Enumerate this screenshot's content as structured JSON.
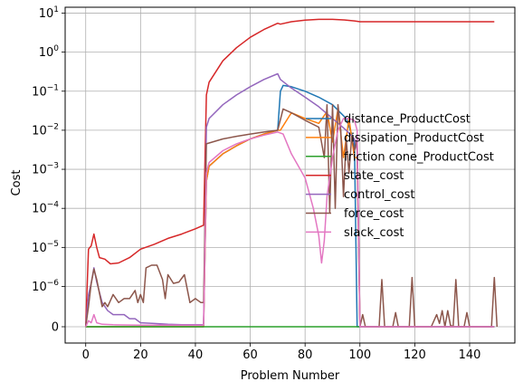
{
  "chart_data": {
    "type": "line",
    "title": "",
    "xlabel": "Problem Number",
    "ylabel": "Cost",
    "xlim": [
      -7.5,
      156.5
    ],
    "x_ticks": [
      0,
      20,
      40,
      60,
      80,
      100,
      120,
      140
    ],
    "y_scale": "symlog",
    "y_ticks": [
      {
        "value": 0,
        "label": "0"
      },
      {
        "value": 1e-06,
        "label": "10",
        "exp": "−6"
      },
      {
        "value": 1e-05,
        "label": "10",
        "exp": "−5"
      },
      {
        "value": 0.0001,
        "label": "10",
        "exp": "−4"
      },
      {
        "value": 0.001,
        "label": "10",
        "exp": "−3"
      },
      {
        "value": 0.01,
        "label": "10",
        "exp": "−2"
      },
      {
        "value": 0.1,
        "label": "10",
        "exp": "−1"
      },
      {
        "value": 1,
        "label": "10",
        "exp": "0"
      },
      {
        "value": 10,
        "label": "10",
        "exp": "1"
      }
    ],
    "grid": true,
    "legend_position": "right",
    "series": [
      {
        "name": "distance_ProductCost",
        "color": "#1f77b4",
        "points": [
          [
            0,
            0
          ],
          [
            43,
            0
          ],
          [
            44,
            0.0005
          ],
          [
            45,
            0.0012
          ],
          [
            50,
            0.0025
          ],
          [
            55,
            0.004
          ],
          [
            60,
            0.006
          ],
          [
            65,
            0.008
          ],
          [
            70,
            0.01
          ],
          [
            71,
            0.1
          ],
          [
            72,
            0.14
          ],
          [
            75,
            0.13
          ],
          [
            80,
            0.1
          ],
          [
            85,
            0.07
          ],
          [
            90,
            0.045
          ],
          [
            95,
            0.02
          ],
          [
            98,
            0.005
          ],
          [
            99,
            0
          ],
          [
            149,
            0
          ]
        ]
      },
      {
        "name": "dissipation_ProductCost",
        "color": "#ff7f0e",
        "points": [
          [
            0,
            0
          ],
          [
            43,
            0
          ],
          [
            44,
            0.0005
          ],
          [
            45,
            0.0012
          ],
          [
            50,
            0.0025
          ],
          [
            55,
            0.004
          ],
          [
            60,
            0.006
          ],
          [
            65,
            0.008
          ],
          [
            70,
            0.01
          ],
          [
            71,
            0.01
          ],
          [
            75,
            0.028
          ],
          [
            80,
            0.02
          ],
          [
            85,
            0.015
          ],
          [
            88,
            0.03
          ],
          [
            90,
            0.005
          ],
          [
            92,
            0.035
          ],
          [
            94,
            0.002
          ],
          [
            96,
            0.02
          ],
          [
            98,
            0.002
          ],
          [
            99,
            0.002
          ],
          [
            100,
            0
          ],
          [
            149,
            0
          ]
        ]
      },
      {
        "name": "friction cone_ProductCost",
        "color": "#2ca02c",
        "points": [
          [
            0,
            0
          ],
          [
            149,
            0
          ]
        ]
      },
      {
        "name": "state_cost",
        "color": "#d62728",
        "points": [
          [
            0,
            0
          ],
          [
            1,
            9e-06
          ],
          [
            2,
            1.1e-05
          ],
          [
            3,
            2.2e-05
          ],
          [
            4,
            1e-05
          ],
          [
            5,
            5.5e-06
          ],
          [
            7,
            5e-06
          ],
          [
            9,
            3.8e-06
          ],
          [
            12,
            4e-06
          ],
          [
            16,
            5.5e-06
          ],
          [
            20,
            9e-06
          ],
          [
            25,
            1.2e-05
          ],
          [
            30,
            1.7e-05
          ],
          [
            35,
            2.2e-05
          ],
          [
            40,
            3e-05
          ],
          [
            43,
            3.7e-05
          ],
          [
            44,
            0.08
          ],
          [
            45,
            0.17
          ],
          [
            50,
            0.6
          ],
          [
            55,
            1.3
          ],
          [
            60,
            2.4
          ],
          [
            65,
            3.8
          ],
          [
            70,
            5.5
          ],
          [
            71,
            5.2
          ],
          [
            75,
            6.0
          ],
          [
            80,
            6.6
          ],
          [
            85,
            6.9
          ],
          [
            90,
            6.9
          ],
          [
            95,
            6.6
          ],
          [
            98,
            6.3
          ],
          [
            100,
            6.0
          ],
          [
            149,
            6.0
          ]
        ]
      },
      {
        "name": "control_cost",
        "color": "#9467bd",
        "points": [
          [
            0,
            0
          ],
          [
            1,
            8e-07
          ],
          [
            2,
            1.2e-06
          ],
          [
            3,
            3e-06
          ],
          [
            4,
            1.3e-06
          ],
          [
            6,
            6e-07
          ],
          [
            8,
            4e-07
          ],
          [
            10,
            3e-07
          ],
          [
            14,
            3e-07
          ],
          [
            16,
            2e-07
          ],
          [
            18,
            2e-07
          ],
          [
            20,
            1e-07
          ],
          [
            25,
            8e-08
          ],
          [
            30,
            6e-08
          ],
          [
            35,
            5e-08
          ],
          [
            43,
            5e-08
          ],
          [
            44,
            0.012
          ],
          [
            45,
            0.02
          ],
          [
            50,
            0.045
          ],
          [
            55,
            0.08
          ],
          [
            60,
            0.13
          ],
          [
            65,
            0.2
          ],
          [
            70,
            0.28
          ],
          [
            71,
            0.2
          ],
          [
            75,
            0.12
          ],
          [
            80,
            0.07
          ],
          [
            85,
            0.04
          ],
          [
            90,
            0.02
          ],
          [
            95,
            0.01
          ],
          [
            98,
            0.006
          ],
          [
            99,
            0.003
          ],
          [
            100,
            0
          ],
          [
            149,
            0
          ]
        ]
      },
      {
        "name": "force_cost",
        "color": "#8c564b",
        "points": [
          [
            0,
            0
          ],
          [
            1,
            5e-07
          ],
          [
            2,
            1.2e-06
          ],
          [
            3,
            2.8e-06
          ],
          [
            4,
            1.5e-06
          ],
          [
            6,
            5e-07
          ],
          [
            7,
            6e-07
          ],
          [
            8,
            5e-07
          ],
          [
            10,
            8e-07
          ],
          [
            12,
            6e-07
          ],
          [
            14,
            7e-07
          ],
          [
            16,
            7e-07
          ],
          [
            18,
            9e-07
          ],
          [
            19,
            6e-07
          ],
          [
            20,
            8e-07
          ],
          [
            21,
            6e-07
          ],
          [
            22,
            3e-06
          ],
          [
            24,
            3.5e-06
          ],
          [
            26,
            3.5e-06
          ],
          [
            28,
            1.5e-06
          ],
          [
            29,
            7e-07
          ],
          [
            30,
            2e-06
          ],
          [
            32,
            1.2e-06
          ],
          [
            34,
            1.3e-06
          ],
          [
            36,
            2e-06
          ],
          [
            38,
            6e-07
          ],
          [
            40,
            7e-07
          ],
          [
            42,
            6e-07
          ],
          [
            43,
            6e-07
          ],
          [
            44,
            0.0045
          ],
          [
            50,
            0.006
          ],
          [
            55,
            0.007
          ],
          [
            60,
            0.008
          ],
          [
            65,
            0.009
          ],
          [
            70,
            0.01
          ],
          [
            72,
            0.035
          ],
          [
            75,
            0.028
          ],
          [
            80,
            0.018
          ],
          [
            85,
            0.012
          ],
          [
            87,
            0.002
          ],
          [
            88,
            0.045
          ],
          [
            89,
            8e-05
          ],
          [
            90,
            0.045
          ],
          [
            91,
            0.0001
          ],
          [
            92,
            0.045
          ],
          [
            93,
            0.01
          ],
          [
            94,
            0.0002
          ],
          [
            95,
            0.006
          ],
          [
            96,
            0.0008
          ],
          [
            97,
            0.007
          ],
          [
            98,
            0.003
          ],
          [
            99,
            0.006
          ],
          [
            100,
            0
          ],
          [
            101,
            3e-07
          ],
          [
            102,
            0
          ],
          [
            107,
            0
          ],
          [
            108,
            1.5e-06
          ],
          [
            109,
            0
          ],
          [
            112,
            0
          ],
          [
            113,
            3.5e-07
          ],
          [
            114,
            0
          ],
          [
            118,
            0
          ],
          [
            119,
            1.7e-06
          ],
          [
            120,
            0
          ],
          [
            126,
            0
          ],
          [
            127,
            1.5e-07
          ],
          [
            128,
            3e-07
          ],
          [
            129,
            8e-08
          ],
          [
            130,
            4e-07
          ],
          [
            131,
            0
          ],
          [
            132,
            4e-07
          ],
          [
            133,
            4e-08
          ],
          [
            134,
            0
          ],
          [
            135,
            1.5e-06
          ],
          [
            136,
            0
          ],
          [
            138,
            0
          ],
          [
            139,
            3.5e-07
          ],
          [
            140,
            0
          ],
          [
            148,
            0
          ],
          [
            149,
            1.7e-06
          ],
          [
            150,
            0
          ]
        ]
      },
      {
        "name": "slack_cost",
        "color": "#e377c2",
        "points": [
          [
            0,
            0
          ],
          [
            1,
            1.5e-07
          ],
          [
            2,
            1e-07
          ],
          [
            3,
            3e-07
          ],
          [
            4,
            1e-07
          ],
          [
            6,
            6e-08
          ],
          [
            10,
            5e-08
          ],
          [
            20,
            4e-08
          ],
          [
            30,
            4e-08
          ],
          [
            43,
            4e-08
          ],
          [
            44,
            0.0008
          ],
          [
            45,
            0.0015
          ],
          [
            50,
            0.003
          ],
          [
            55,
            0.0045
          ],
          [
            60,
            0.006
          ],
          [
            65,
            0.0075
          ],
          [
            70,
            0.009
          ],
          [
            72,
            0.008
          ],
          [
            75,
            0.0025
          ],
          [
            80,
            0.0006
          ],
          [
            83,
            0.0001
          ],
          [
            85,
            2e-05
          ],
          [
            86,
            4e-06
          ],
          [
            87,
            1.5e-05
          ],
          [
            88,
            0.0002
          ],
          [
            90,
            0.002
          ],
          [
            92,
            0.01
          ],
          [
            94,
            0.02
          ],
          [
            96,
            0.02
          ],
          [
            98,
            0.018
          ],
          [
            99,
            0.01
          ],
          [
            100,
            0
          ],
          [
            149,
            0
          ]
        ]
      }
    ]
  }
}
